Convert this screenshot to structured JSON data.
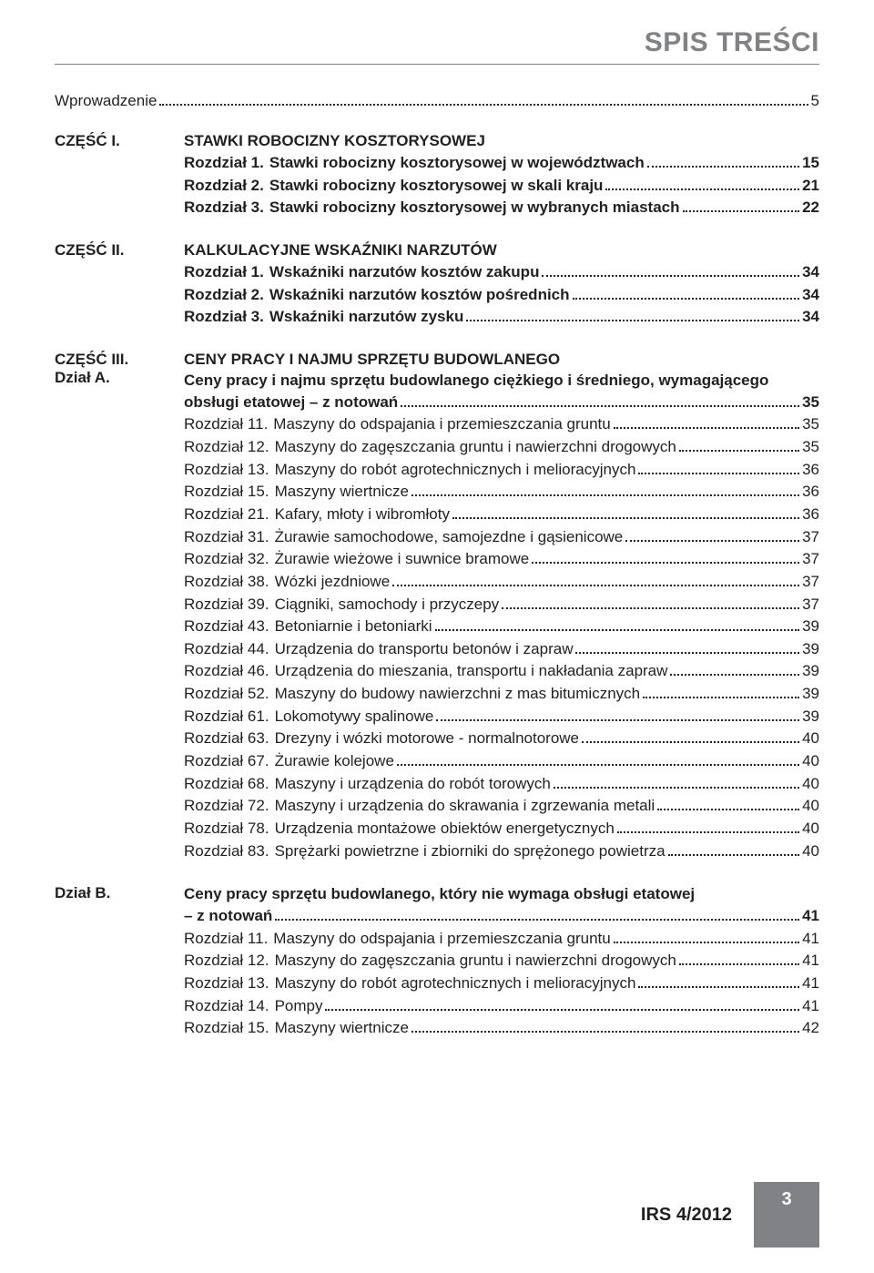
{
  "header": {
    "title": "SPIS TREŚCI"
  },
  "intro": {
    "label": "Wprowadzenie",
    "page": "5"
  },
  "parts": [
    {
      "left": "CZĘŚĆ I.",
      "heading": "STAWKI ROBOCIZNY KOSZTORYSOWEJ",
      "rows": [
        {
          "label": "Rozdział 1.",
          "title": "Stawki robocizny kosztorysowej w województwach",
          "page": "15",
          "bold": true
        },
        {
          "label": "Rozdział 2.",
          "title": "Stawki robocizny kosztorysowej w skali kraju",
          "page": "21",
          "bold": true
        },
        {
          "label": "Rozdział 3.",
          "title": "Stawki robocizny kosztorysowej w wybranych miastach",
          "page": "22",
          "bold": true
        }
      ]
    },
    {
      "left": "CZĘŚĆ II.",
      "heading": "KALKULACYJNE WSKAŹNIKI NARZUTÓW",
      "rows": [
        {
          "label": "Rozdział 1.",
          "title": "Wskaźniki narzutów kosztów zakupu",
          "page": "34",
          "bold": true
        },
        {
          "label": "Rozdział 2.",
          "title": "Wskaźniki narzutów kosztów pośrednich",
          "page": "34",
          "bold": true
        },
        {
          "label": "Rozdział 3.",
          "title": "Wskaźniki narzutów zysku",
          "page": "34",
          "bold": true
        }
      ]
    },
    {
      "left": "CZĘŚĆ III.",
      "left2": "Dział A.",
      "heading": "CENY PRACY I NAJMU SPRZĘTU BUDOWLANEGO",
      "subheading": "Ceny pracy i najmu sprzętu budowlanego ciężkiego i średniego, wymagającego",
      "subrow": {
        "title": "obsługi etatowej – z notowań",
        "page": "35"
      },
      "rows": [
        {
          "label": "Rozdział 11.",
          "title": "Maszyny do odspajania i przemieszczania gruntu",
          "page": "35"
        },
        {
          "label": "Rozdział 12.",
          "title": "Maszyny do zagęszczania gruntu i nawierzchni drogowych",
          "page": "35"
        },
        {
          "label": "Rozdział 13.",
          "title": "Maszyny do robót agrotechnicznych i melioracyjnych",
          "page": "36"
        },
        {
          "label": "Rozdział 15.",
          "title": "Maszyny wiertnicze",
          "page": "36"
        },
        {
          "label": "Rozdział 21.",
          "title": "Kafary, młoty i wibromłoty",
          "page": "36"
        },
        {
          "label": "Rozdział 31.",
          "title": "Żurawie samochodowe, samojezdne i gąsienicowe",
          "page": "37"
        },
        {
          "label": "Rozdział 32.",
          "title": "Żurawie wieżowe i suwnice bramowe",
          "page": "37"
        },
        {
          "label": "Rozdział 38.",
          "title": "Wózki jezdniowe",
          "page": "37"
        },
        {
          "label": "Rozdział 39.",
          "title": "Ciągniki, samochody i przyczepy",
          "page": "37"
        },
        {
          "label": "Rozdział 43.",
          "title": "Betoniarnie i betoniarki",
          "page": "39"
        },
        {
          "label": "Rozdział 44.",
          "title": "Urządzenia do transportu betonów i zapraw",
          "page": "39"
        },
        {
          "label": "Rozdział 46.",
          "title": "Urządzenia do mieszania, transportu i nakładania zapraw",
          "page": "39"
        },
        {
          "label": "Rozdział 52.",
          "title": "Maszyny do budowy nawierzchni z mas  bitumicznych",
          "page": "39"
        },
        {
          "label": "Rozdział 61.",
          "title": "Lokomotywy spalinowe",
          "page": "39"
        },
        {
          "label": "Rozdział 63.",
          "title": "Drezyny i wózki motorowe - normalnotorowe",
          "page": "40"
        },
        {
          "label": "Rozdział 67.",
          "title": "Żurawie kolejowe",
          "page": "40"
        },
        {
          "label": "Rozdział 68.",
          "title": "Maszyny i urządzenia do robót torowych",
          "page": "40"
        },
        {
          "label": "Rozdział 72.",
          "title": "Maszyny i urządzenia do skrawania i zgrzewania metali",
          "page": "40"
        },
        {
          "label": "Rozdział 78.",
          "title": "Urządzenia montażowe obiektów energetycznych",
          "page": "40"
        },
        {
          "label": "Rozdział 83.",
          "title": "Sprężarki powietrzne i zbiorniki do sprężonego powietrza",
          "page": "40"
        }
      ]
    },
    {
      "left": "Dział B.",
      "subheading": "Ceny pracy sprzętu budowlanego, który nie wymaga obsługi etatowej",
      "subrow": {
        "title": "– z notowań",
        "page": "41"
      },
      "rows": [
        {
          "label": "Rozdział 11.",
          "title": "Maszyny do odspajania i przemieszczania  gruntu",
          "page": "41"
        },
        {
          "label": "Rozdział 12.",
          "title": "Maszyny do zagęszczania gruntu i nawierzchni drogowych",
          "page": "41"
        },
        {
          "label": "Rozdział 13.",
          "title": "Maszyny do robót agrotechnicznych i melioracyjnych",
          "page": "41"
        },
        {
          "label": "Rozdział 14.",
          "title": "Pompy",
          "page": "41"
        },
        {
          "label": "Rozdział 15.",
          "title": "Maszyny wiertnicze",
          "page": "42"
        }
      ]
    }
  ],
  "footer": {
    "label": "IRS 4/2012",
    "page": "3"
  }
}
